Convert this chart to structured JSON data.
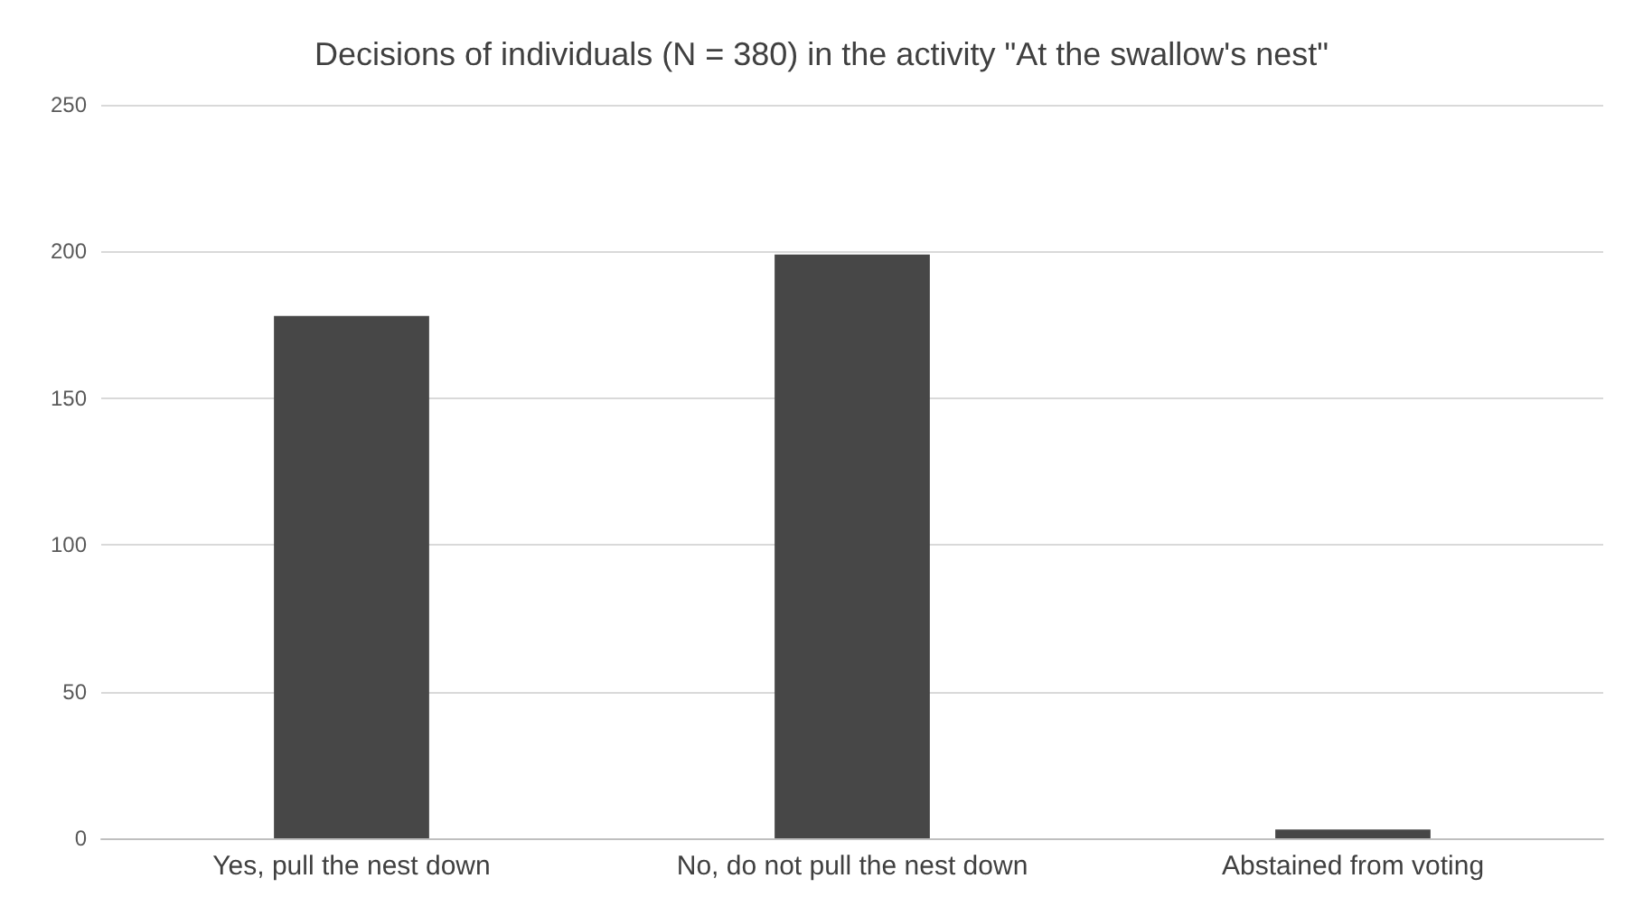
{
  "chart_data": {
    "type": "bar",
    "title": "Decisions of individuals (N = 380) in the activity \"At the swallow's nest\"",
    "categories": [
      "Yes, pull the nest down",
      "No, do not pull the nest down",
      "Abstained from voting"
    ],
    "values": [
      178,
      199,
      3
    ],
    "color": "#474747",
    "ylim": [
      0,
      250
    ],
    "yticks": [
      0,
      50,
      100,
      150,
      200,
      250
    ],
    "grid": "y"
  }
}
